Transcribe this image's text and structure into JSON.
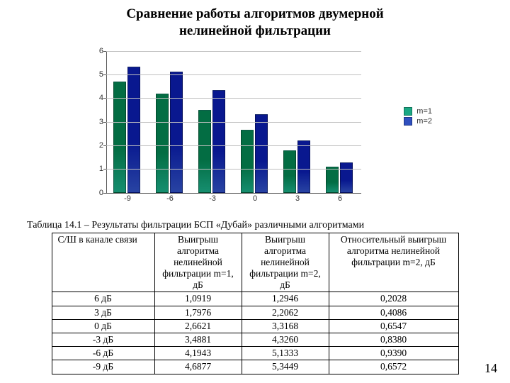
{
  "title_line1": "Сравнение работы алгоритмов двумерной",
  "title_line2": "нелинейной фильтрации",
  "chart": {
    "type": "bar",
    "categories": [
      "-9",
      "-6",
      "-3",
      "0",
      "3",
      "6"
    ],
    "series": [
      {
        "name": "m=1",
        "color": "#1aa783",
        "values": [
          4.69,
          4.19,
          3.49,
          2.66,
          1.8,
          1.09
        ]
      },
      {
        "name": "m=2",
        "color": "#2f4fbf",
        "values": [
          5.34,
          5.13,
          4.33,
          3.32,
          2.21,
          1.29
        ]
      }
    ],
    "ylim": [
      0,
      6
    ],
    "ytick_step": 1,
    "grid_color": "#c0c0c0",
    "axis_color": "#555555",
    "background_color": "#ffffff",
    "label_fontsize": 11
  },
  "table_caption": "Таблица 14.1 – Результаты фильтрации БСП «Дубай» различными алгоритмами",
  "table": {
    "columns": [
      "С/Ш в канале связи",
      "Выигрыш алгоритма нелинейной фильтрации m=1, дБ",
      "Выигрыш алгоритма нелинейной фильтрации m=2, дБ",
      "Относительный выигрыш алгоритма нелинейной фильтрации m=2, дБ"
    ],
    "rows": [
      [
        "6 дБ",
        "1,0919",
        "1,2946",
        "0,2028"
      ],
      [
        "3 дБ",
        "1,7976",
        "2,2062",
        "0,4086"
      ],
      [
        "0 дБ",
        "2,6621",
        "3,3168",
        "0,6547"
      ],
      [
        "-3 дБ",
        "3,4881",
        "4,3260",
        "0,8380"
      ],
      [
        "-6 дБ",
        "4,1943",
        "5,1333",
        "0,9390"
      ],
      [
        "-9 дБ",
        "4,6877",
        "5,3449",
        "0,6572"
      ]
    ]
  },
  "page_number": "14"
}
